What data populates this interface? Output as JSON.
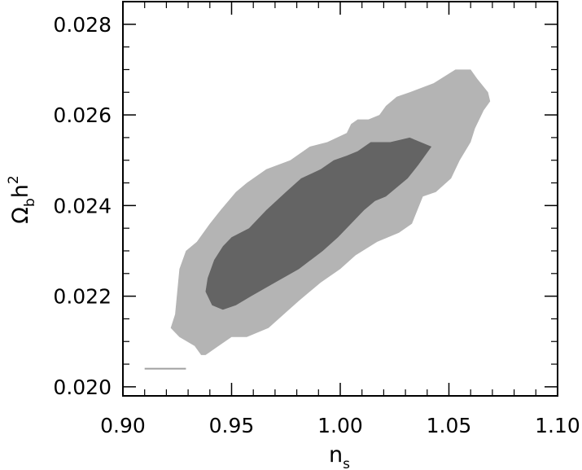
{
  "chart_data": {
    "type": "contour",
    "title": "",
    "xlabel": {
      "main": "n",
      "sub": "s"
    },
    "ylabel": {
      "main": "Ω",
      "sub": "b",
      "mid": "h",
      "sup": "2"
    },
    "xlim": [
      0.9,
      1.1
    ],
    "ylim": [
      0.0198,
      0.0285
    ],
    "x_ticks": [
      0.9,
      0.95,
      1.0,
      1.05,
      1.1
    ],
    "x_tick_labels": [
      "0.90",
      "0.95",
      "1.00",
      "1.05",
      "1.10"
    ],
    "y_ticks": [
      0.02,
      0.022,
      0.024,
      0.026,
      0.028
    ],
    "y_tick_labels": [
      "0.020",
      "0.022",
      "0.024",
      "0.026",
      "0.028"
    ],
    "x_minor_step": 0.01,
    "y_minor_step": 0.0005,
    "grid": false,
    "series": [
      {
        "level": "outer",
        "color": "#b4b4b4",
        "points": [
          [
            0.922,
            0.0213
          ],
          [
            0.924,
            0.0216
          ],
          [
            0.926,
            0.0226
          ],
          [
            0.929,
            0.023
          ],
          [
            0.934,
            0.0232
          ],
          [
            0.937,
            0.0234
          ],
          [
            0.94,
            0.0236
          ],
          [
            0.945,
            0.0239
          ],
          [
            0.952,
            0.0243
          ],
          [
            0.957,
            0.0245
          ],
          [
            0.966,
            0.0248
          ],
          [
            0.977,
            0.025
          ],
          [
            0.986,
            0.0253
          ],
          [
            0.994,
            0.0254
          ],
          [
            1.003,
            0.0256
          ],
          [
            1.005,
            0.0258
          ],
          [
            1.008,
            0.0259
          ],
          [
            1.013,
            0.0259
          ],
          [
            1.018,
            0.026
          ],
          [
            1.021,
            0.0262
          ],
          [
            1.026,
            0.0264
          ],
          [
            1.032,
            0.0265
          ],
          [
            1.043,
            0.0267
          ],
          [
            1.053,
            0.027
          ],
          [
            1.06,
            0.027
          ],
          [
            1.063,
            0.0268
          ],
          [
            1.068,
            0.0265
          ],
          [
            1.069,
            0.0263
          ],
          [
            1.066,
            0.0261
          ],
          [
            1.062,
            0.0257
          ],
          [
            1.06,
            0.0254
          ],
          [
            1.055,
            0.025
          ],
          [
            1.051,
            0.0246
          ],
          [
            1.044,
            0.0243
          ],
          [
            1.038,
            0.0242
          ],
          [
            1.033,
            0.0236
          ],
          [
            1.027,
            0.0234
          ],
          [
            1.017,
            0.0232
          ],
          [
            1.007,
            0.0229
          ],
          [
            1.0,
            0.0226
          ],
          [
            0.991,
            0.0223
          ],
          [
            0.981,
            0.0219
          ],
          [
            0.967,
            0.0213
          ],
          [
            0.957,
            0.0211
          ],
          [
            0.95,
            0.0211
          ],
          [
            0.944,
            0.0209
          ],
          [
            0.938,
            0.0207
          ],
          [
            0.936,
            0.0207
          ],
          [
            0.933,
            0.0209
          ],
          [
            0.926,
            0.0211
          ]
        ]
      },
      {
        "level": "inner",
        "color": "#646464",
        "points": [
          [
            0.938,
            0.0221
          ],
          [
            0.939,
            0.0224
          ],
          [
            0.942,
            0.0228
          ],
          [
            0.946,
            0.0231
          ],
          [
            0.95,
            0.0233
          ],
          [
            0.958,
            0.0235
          ],
          [
            0.966,
            0.0239
          ],
          [
            0.975,
            0.0243
          ],
          [
            0.982,
            0.0246
          ],
          [
            0.991,
            0.0248
          ],
          [
            0.997,
            0.025
          ],
          [
            1.003,
            0.0251
          ],
          [
            1.008,
            0.0252
          ],
          [
            1.014,
            0.0254
          ],
          [
            1.023,
            0.0254
          ],
          [
            1.032,
            0.0255
          ],
          [
            1.037,
            0.0254
          ],
          [
            1.042,
            0.0253
          ],
          [
            1.036,
            0.0249
          ],
          [
            1.031,
            0.0246
          ],
          [
            1.021,
            0.0242
          ],
          [
            1.016,
            0.0241
          ],
          [
            1.011,
            0.0239
          ],
          [
            1.005,
            0.0236
          ],
          [
            0.999,
            0.0233
          ],
          [
            0.992,
            0.023
          ],
          [
            0.981,
            0.0226
          ],
          [
            0.97,
            0.0223
          ],
          [
            0.959,
            0.022
          ],
          [
            0.952,
            0.0218
          ],
          [
            0.946,
            0.0217
          ],
          [
            0.941,
            0.0218
          ]
        ]
      }
    ],
    "annotations": [
      {
        "type": "segment",
        "x1": 0.91,
        "x2": 0.929,
        "y": 0.0204,
        "color": "#a0a0a0"
      }
    ]
  }
}
